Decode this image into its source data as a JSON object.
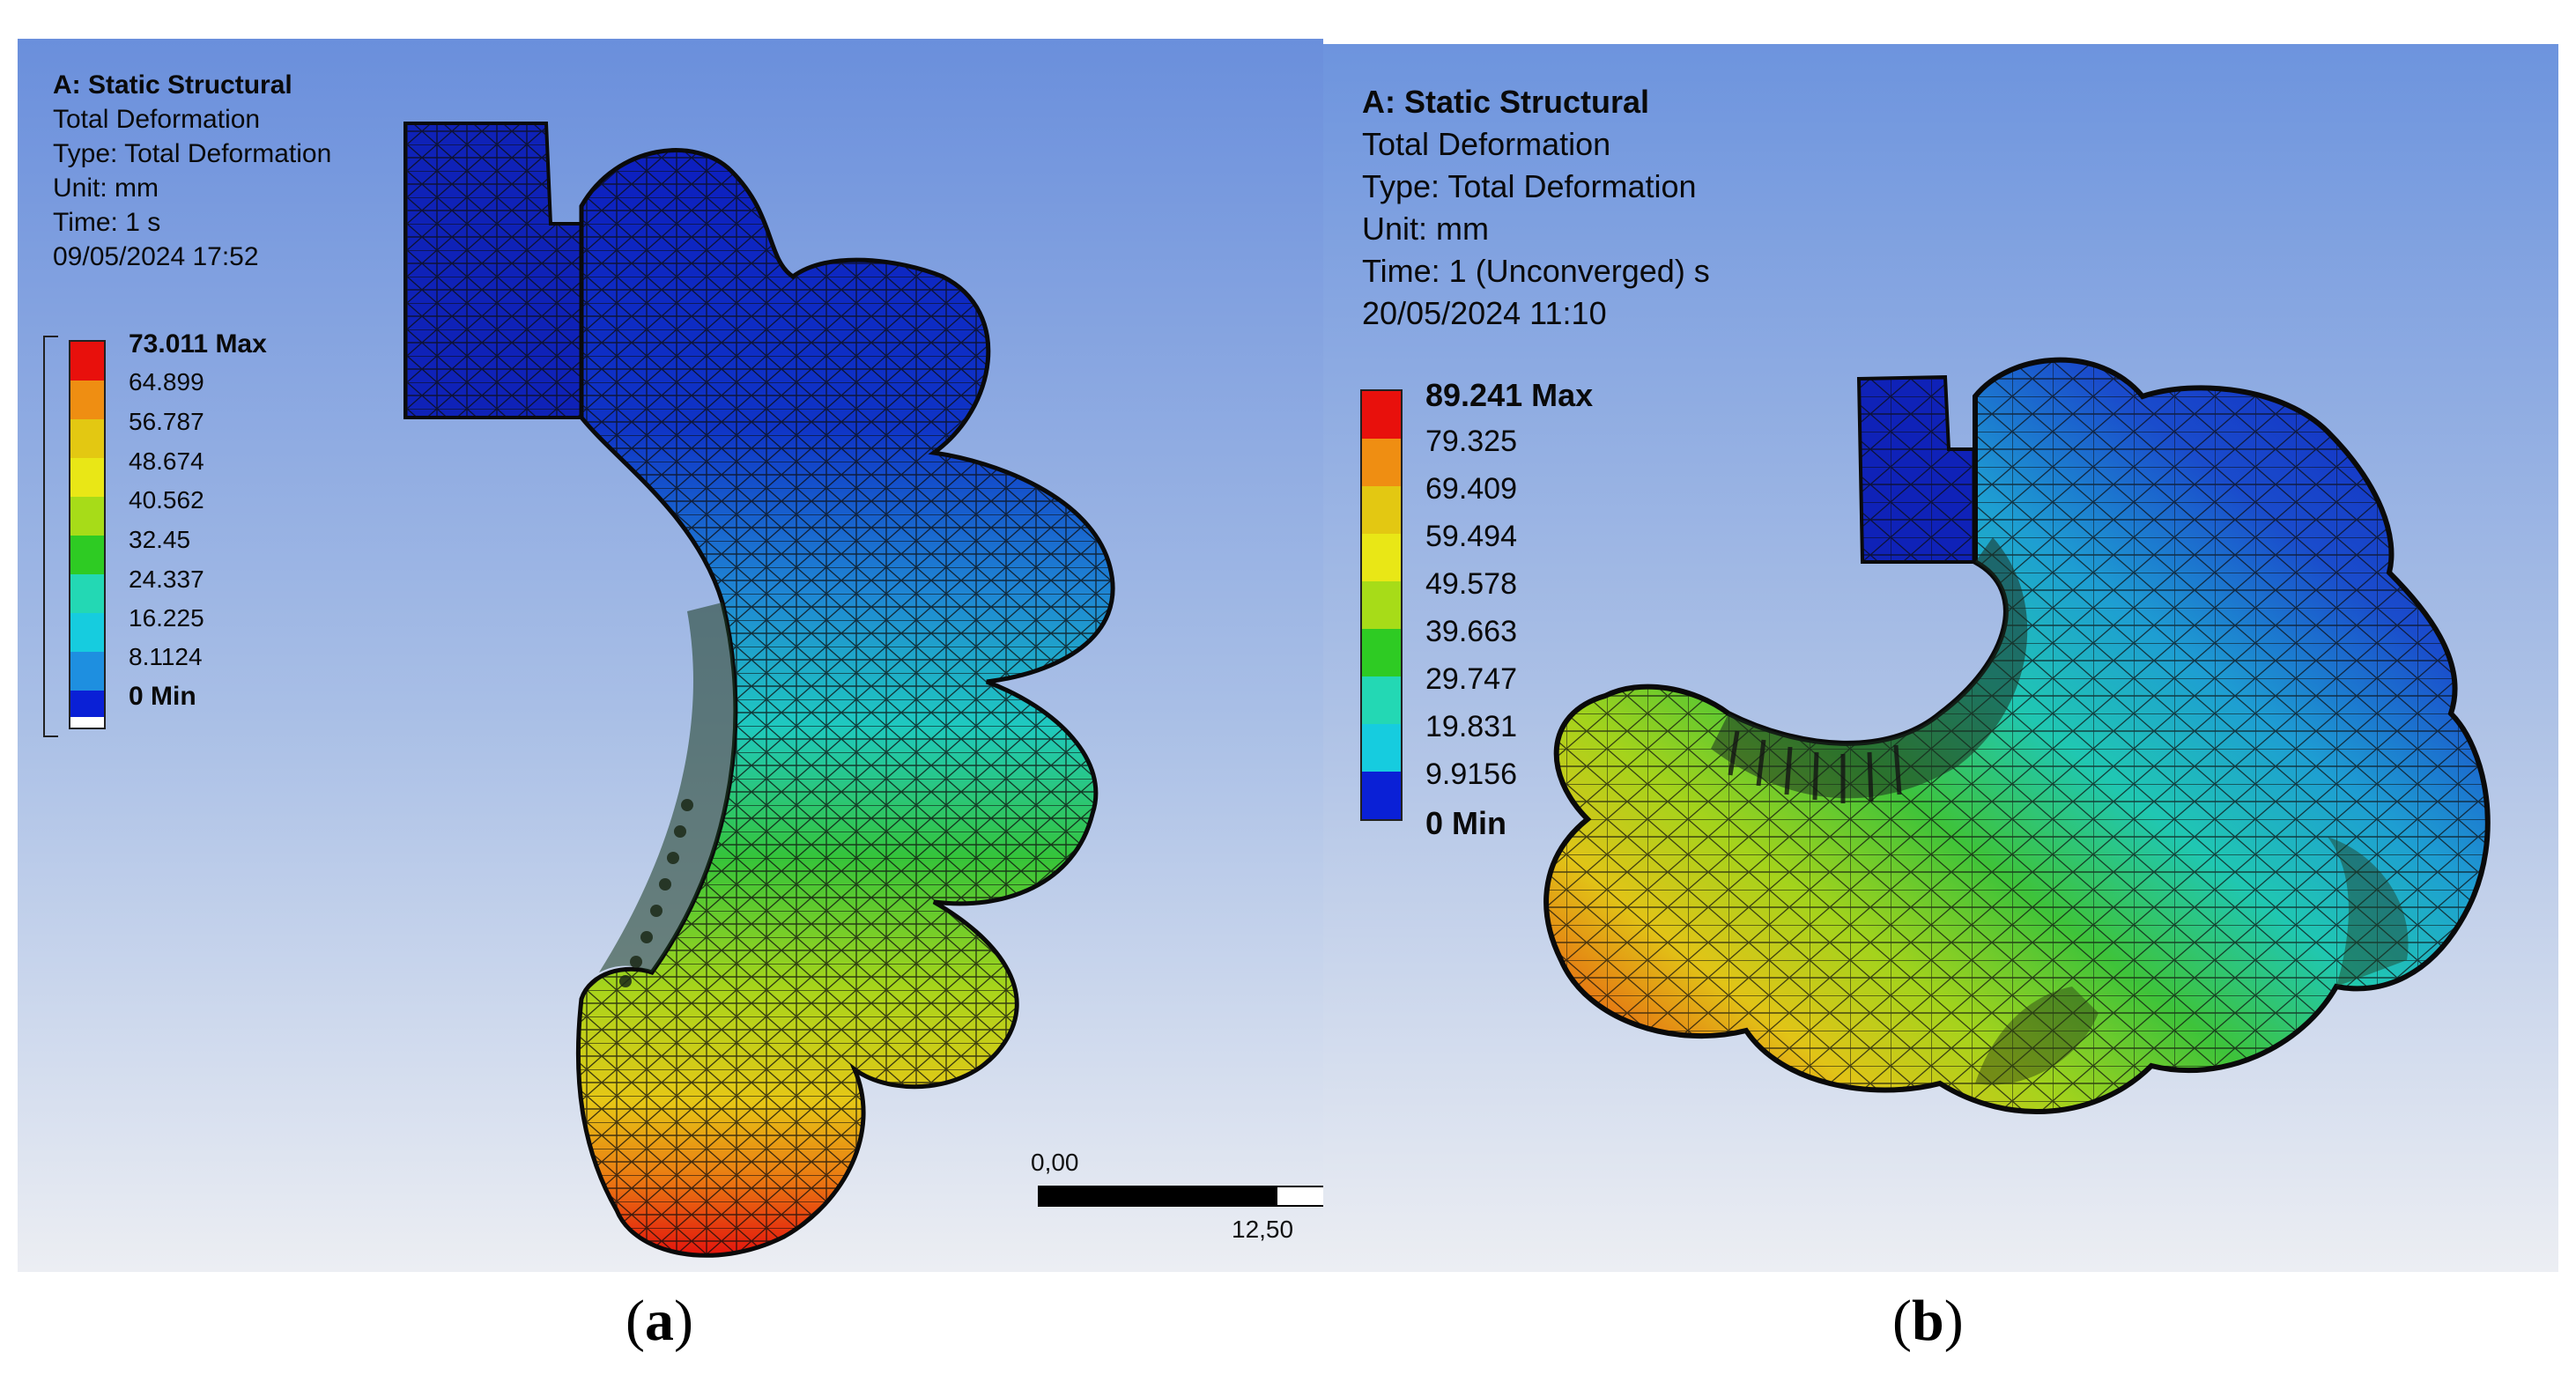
{
  "panel_a": {
    "header": {
      "title": "A: Static Structural",
      "result": "Total Deformation",
      "type": "Type: Total Deformation",
      "unit": "Unit: mm",
      "time": "Time: 1 s",
      "date": "09/05/2024 17:52"
    },
    "legend": {
      "labels": [
        "73.011 Max",
        "64.899",
        "56.787",
        "48.674",
        "40.562",
        "32.45",
        "24.337",
        "16.225",
        "8.1124",
        "0 Min"
      ],
      "colors": [
        "#e8100c",
        "#ef8e12",
        "#e3c812",
        "#e9e716",
        "#a7dc18",
        "#2ecb23",
        "#23d8b4",
        "#16ccdf",
        "#1e8fe0",
        "#0a20d6"
      ]
    },
    "scale_bar": {
      "start_label": "0,00",
      "end_label": "12,50"
    },
    "caption_letter": "a"
  },
  "panel_b": {
    "header": {
      "title": "A: Static Structural",
      "result": "Total Deformation",
      "type": "Type: Total Deformation",
      "unit": "Unit: mm",
      "time": "Time: 1 (Unconverged) s",
      "date": "20/05/2024 11:10"
    },
    "legend": {
      "labels": [
        "89.241 Max",
        "79.325",
        "69.409",
        "59.494",
        "49.578",
        "39.663",
        "29.747",
        "19.831",
        "9.9156",
        "0 Min"
      ],
      "colors": [
        "#e8100c",
        "#ef8e12",
        "#e3c812",
        "#e9e716",
        "#a7dc18",
        "#2ecb23",
        "#23d8b4",
        "#16ccdf",
        "#1e8fe0",
        "#0a20d6"
      ]
    },
    "caption_letter": "b"
  },
  "colors": {
    "background_top": "#6f93dd",
    "background_bottom": "#eef0f4",
    "mesh_line": "#101010"
  }
}
